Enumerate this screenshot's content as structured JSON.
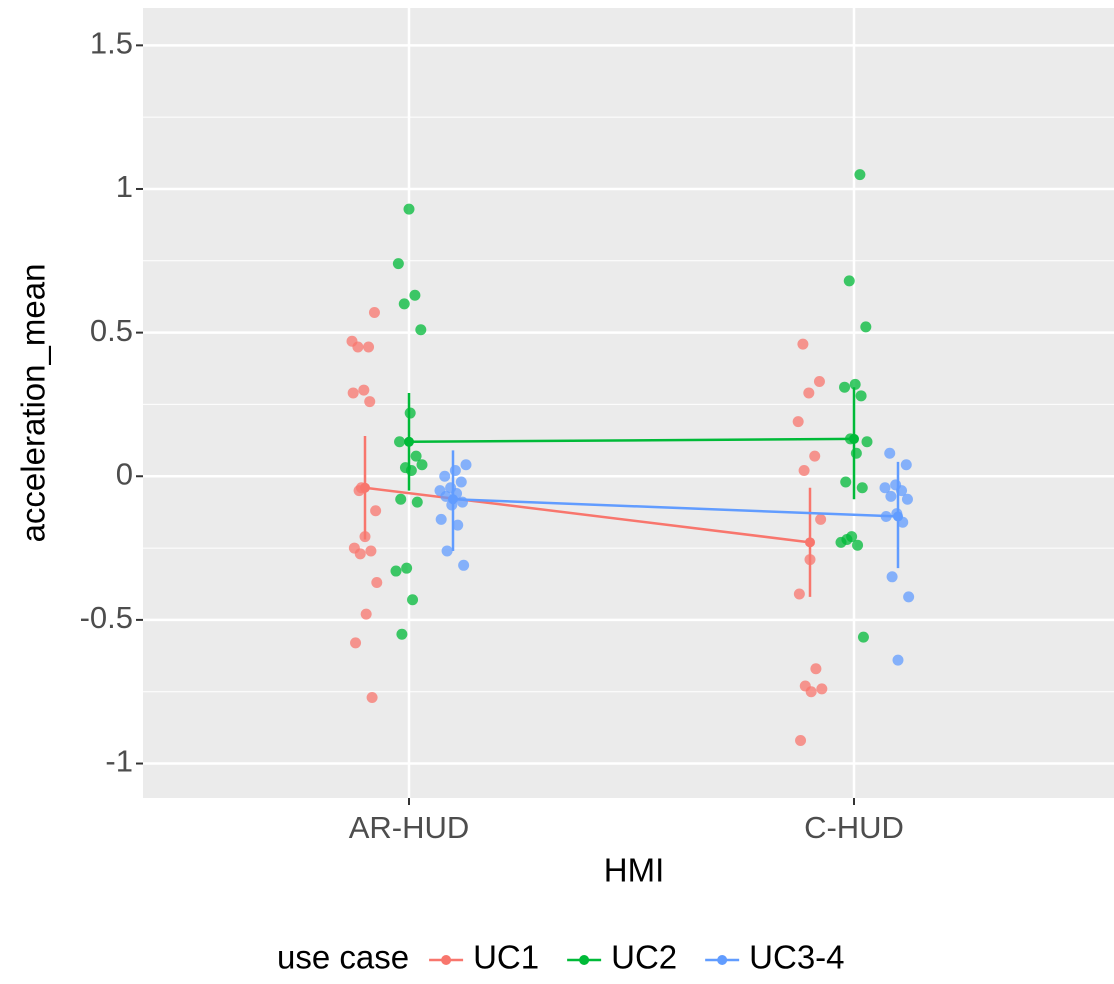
{
  "chart_data": {
    "type": "dodged-points-mean-ci",
    "xlabel": "HMI",
    "ylabel": "acceleration_mean",
    "categories": [
      "AR-HUD",
      "C-HUD"
    ],
    "ylim": [
      -1.12,
      1.63
    ],
    "yticks": [
      -1,
      -0.5,
      0,
      0.5,
      1,
      1.5
    ],
    "grid": true,
    "legend_title": "use case",
    "legend_position": "bottom",
    "series": [
      {
        "name": "UC1",
        "color": "#f8766d",
        "points": [
          [
            0.47,
            0.45,
            0.45,
            0.57,
            0.3,
            0.29,
            0.26,
            -0.05,
            -0.12,
            -0.21,
            -0.25,
            -0.26,
            -0.27,
            -0.37,
            -0.48,
            -0.58,
            -0.77,
            -0.04
          ],
          [
            0.46,
            0.33,
            0.29,
            0.19,
            0.07,
            0.02,
            -0.15,
            -0.29,
            -0.41,
            -0.67,
            -0.73,
            -0.74,
            -0.75,
            -0.92
          ]
        ],
        "mean": [
          -0.04,
          -0.23
        ],
        "ci_low": [
          -0.22,
          -0.42
        ],
        "ci_high": [
          0.14,
          -0.04
        ]
      },
      {
        "name": "UC2",
        "color": "#00ba38",
        "points": [
          [
            0.93,
            0.74,
            0.63,
            0.6,
            0.51,
            0.22,
            0.12,
            0.07,
            0.03,
            0.04,
            0.02,
            -0.08,
            -0.09,
            -0.32,
            -0.33,
            -0.43,
            -0.55
          ],
          [
            1.05,
            0.68,
            0.52,
            0.32,
            0.31,
            0.28,
            0.13,
            0.12,
            0.08,
            -0.02,
            -0.04,
            -0.21,
            -0.23,
            -0.24,
            -0.22,
            -0.56
          ]
        ],
        "mean": [
          0.12,
          0.13
        ],
        "ci_low": [
          -0.05,
          -0.08
        ],
        "ci_high": [
          0.29,
          0.31
        ]
      },
      {
        "name": "UC3-4",
        "color": "#619cff",
        "points": [
          [
            0.04,
            0.02,
            0,
            -0.02,
            -0.04,
            -0.05,
            -0.06,
            -0.07,
            -0.09,
            -0.1,
            -0.15,
            -0.17,
            -0.26,
            -0.31
          ],
          [
            0.08,
            0.04,
            -0.03,
            -0.04,
            -0.05,
            -0.07,
            -0.08,
            -0.13,
            -0.14,
            -0.16,
            -0.35,
            -0.42,
            -0.64
          ]
        ],
        "mean": [
          -0.08,
          -0.14
        ],
        "ci_low": [
          -0.26,
          -0.32
        ],
        "ci_high": [
          0.09,
          0.05
        ]
      }
    ]
  }
}
